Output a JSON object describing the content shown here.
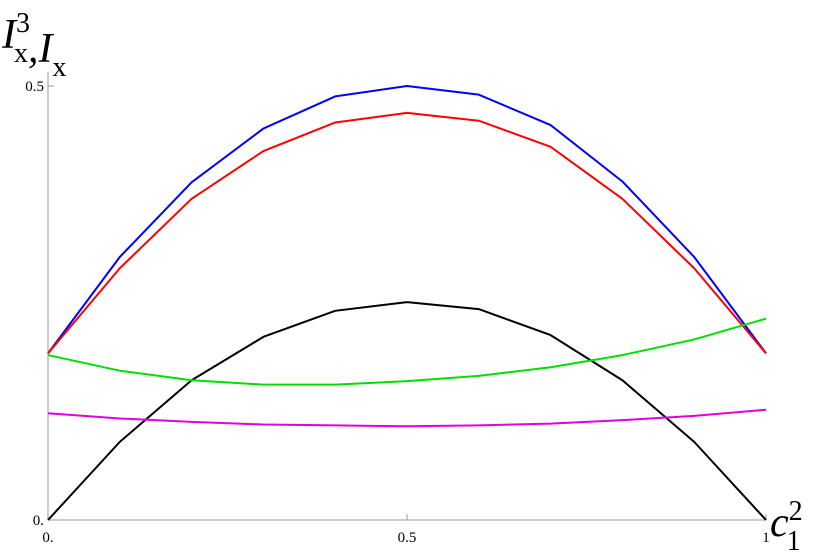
{
  "chart_data": {
    "type": "line",
    "ylabel": [
      {
        "text": "I",
        "sub": "x",
        "sup": "3"
      },
      {
        "text": ",I",
        "sub": "x"
      }
    ],
    "xlabel": {
      "text": "c",
      "sub": "1",
      "sup": "2"
    },
    "x": [
      0,
      0.1,
      0.2,
      0.3,
      0.4,
      0.5,
      0.6,
      0.7,
      0.8,
      0.9,
      1
    ],
    "series": [
      {
        "color": "#0000ff",
        "values": [
          0.192,
          0.303,
          0.389,
          0.451,
          0.488,
          0.5,
          0.49,
          0.455,
          0.39,
          0.303,
          0.192
        ]
      },
      {
        "color": "#ff0000",
        "values": [
          0.192,
          0.29,
          0.37,
          0.425,
          0.458,
          0.469,
          0.46,
          0.43,
          0.37,
          0.29,
          0.192
        ]
      },
      {
        "color": "#000000",
        "values": [
          0,
          0.09,
          0.161,
          0.211,
          0.241,
          0.251,
          0.243,
          0.213,
          0.161,
          0.09,
          0
        ]
      },
      {
        "color": "#00e000",
        "values": [
          0.19,
          0.172,
          0.161,
          0.156,
          0.156,
          0.16,
          0.166,
          0.176,
          0.19,
          0.208,
          0.232
        ]
      },
      {
        "color": "#e000e0",
        "values": [
          0.123,
          0.117,
          0.113,
          0.11,
          0.109,
          0.108,
          0.109,
          0.111,
          0.115,
          0.12,
          0.127
        ]
      }
    ],
    "xlim": [
      0,
      1
    ],
    "ylim": [
      0,
      0.5
    ],
    "xticks": [
      {
        "value": 0,
        "label": "0."
      },
      0.5,
      1
    ],
    "yticks": [
      {
        "value": 0,
        "label": "0."
      },
      0.5
    ]
  }
}
